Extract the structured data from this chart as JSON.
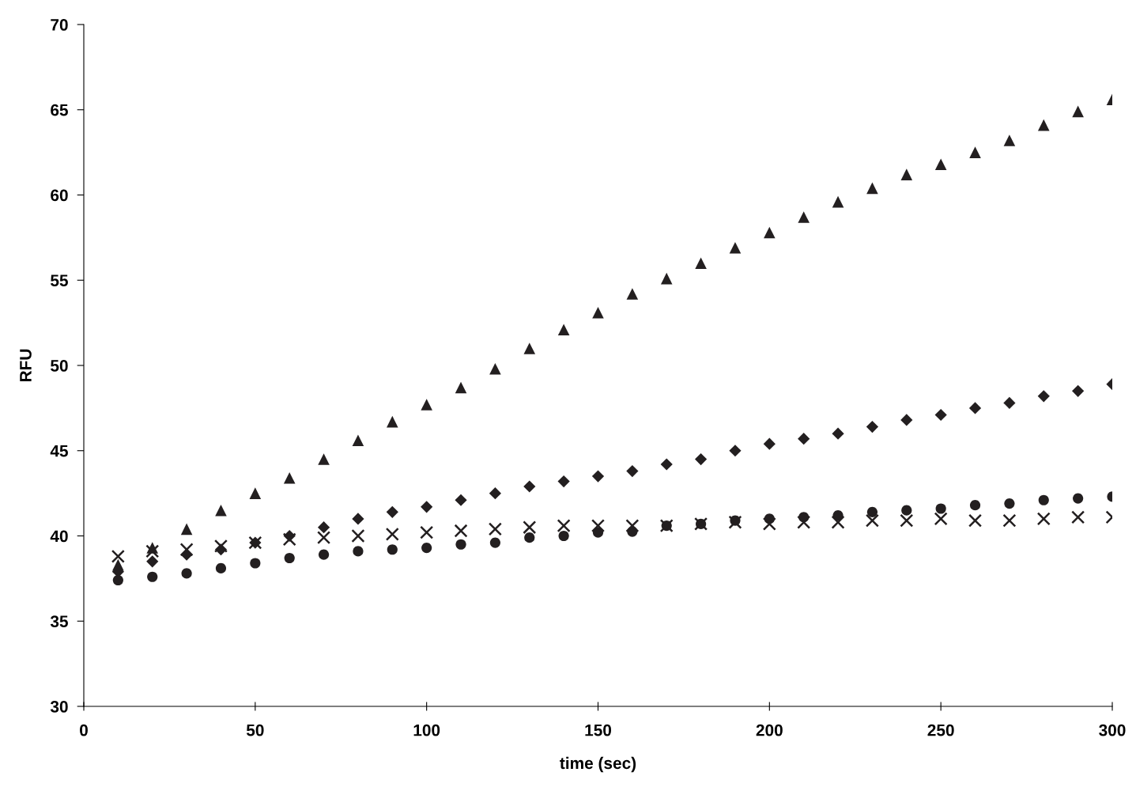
{
  "chart_data": {
    "type": "scatter",
    "xlabel": "time (sec)",
    "ylabel": "RFU",
    "x": [
      10,
      20,
      30,
      40,
      50,
      60,
      70,
      80,
      90,
      100,
      110,
      120,
      130,
      140,
      150,
      160,
      170,
      180,
      190,
      200,
      210,
      220,
      230,
      240,
      250,
      260,
      270,
      280,
      290,
      300
    ],
    "series": [
      {
        "color": "#231f20",
        "marker": "triangle",
        "values": [
          38.3,
          39.3,
          40.4,
          41.5,
          42.5,
          43.4,
          44.5,
          45.6,
          46.7,
          47.7,
          48.7,
          49.8,
          51.0,
          52.1,
          53.1,
          54.2,
          55.1,
          56.0,
          56.9,
          57.8,
          58.7,
          59.6,
          60.4,
          61.2,
          61.8,
          62.5,
          63.2,
          64.1,
          64.9,
          65.6
        ]
      },
      {
        "color": "#231f20",
        "marker": "diamond",
        "values": [
          37.9,
          38.5,
          38.9,
          39.2,
          39.6,
          40.0,
          40.5,
          41.0,
          41.4,
          41.7,
          42.1,
          42.5,
          42.9,
          43.2,
          43.5,
          43.8,
          44.2,
          44.5,
          45.0,
          45.4,
          45.7,
          46.0,
          46.4,
          46.8,
          47.1,
          47.5,
          47.8,
          48.2,
          48.5,
          48.9
        ]
      },
      {
        "color": "#231f20",
        "marker": "circle",
        "values": [
          37.4,
          37.6,
          37.8,
          38.1,
          38.4,
          38.7,
          38.9,
          39.1,
          39.2,
          39.3,
          39.5,
          39.6,
          39.9,
          40.0,
          40.2,
          40.25,
          40.6,
          40.7,
          40.9,
          41.0,
          41.1,
          41.2,
          41.4,
          41.5,
          41.6,
          41.8,
          41.9,
          42.1,
          42.2,
          42.3
        ]
      },
      {
        "color": "#231f20",
        "marker": "cross",
        "values": [
          38.8,
          39.1,
          39.2,
          39.4,
          39.6,
          39.8,
          39.9,
          40.0,
          40.1,
          40.2,
          40.3,
          40.4,
          40.5,
          40.6,
          40.6,
          40.6,
          40.6,
          40.7,
          40.8,
          40.7,
          40.8,
          40.8,
          40.9,
          40.9,
          41.0,
          40.9,
          40.9,
          41.0,
          41.1,
          41.1
        ]
      }
    ],
    "xlim": [
      0,
      300
    ],
    "xticks": [
      0,
      50,
      100,
      150,
      200,
      250,
      300
    ],
    "ylim": [
      30,
      70
    ],
    "yticks": [
      30,
      35,
      40,
      45,
      50,
      55,
      60,
      65,
      70
    ],
    "grid": false,
    "legend": false
  }
}
